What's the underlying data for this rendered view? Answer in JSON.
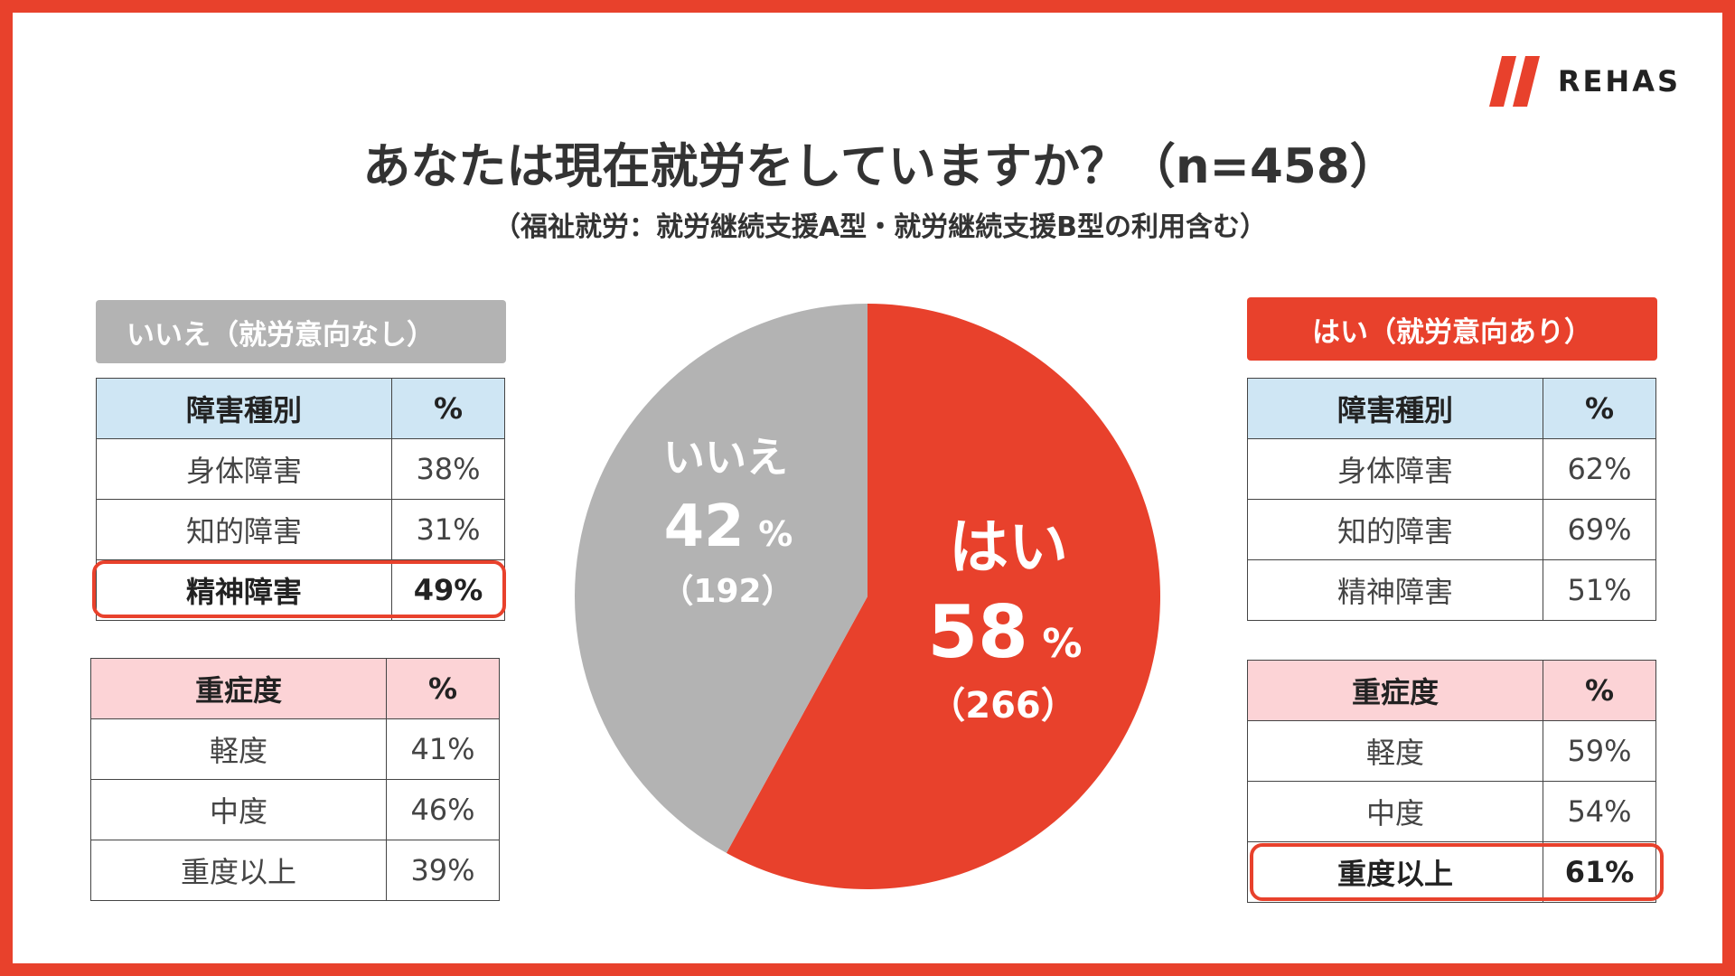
{
  "brand": {
    "name": "REHAS",
    "accent": "#e8412c",
    "gray": "#b3b3b3"
  },
  "title": "あなたは現在就労をしていますか？（n=458）",
  "subtitle": "（福祉就労：就労継続支援A型・就労継続支援B型の利用含む）",
  "left_group": {
    "header": "いいえ（就労意向なし）",
    "disability_table": {
      "headers": [
        "障害種別",
        "%"
      ],
      "rows": [
        {
          "name": "身体障害",
          "pct": "38%"
        },
        {
          "name": "知的障害",
          "pct": "31%"
        },
        {
          "name": "精神障害",
          "pct": "49%"
        }
      ]
    },
    "severity_table": {
      "headers": [
        "重症度",
        "%"
      ],
      "rows": [
        {
          "name": "軽度",
          "pct": "41%"
        },
        {
          "name": "中度",
          "pct": "46%"
        },
        {
          "name": "重度以上",
          "pct": "39%"
        }
      ]
    }
  },
  "right_group": {
    "header": "はい（就労意向あり）",
    "disability_table": {
      "headers": [
        "障害種別",
        "%"
      ],
      "rows": [
        {
          "name": "身体障害",
          "pct": "62%"
        },
        {
          "name": "知的障害",
          "pct": "69%"
        },
        {
          "name": "精神障害",
          "pct": "51%"
        }
      ]
    },
    "severity_table": {
      "headers": [
        "重症度",
        "%"
      ],
      "rows": [
        {
          "name": "軽度",
          "pct": "59%"
        },
        {
          "name": "中度",
          "pct": "54%"
        },
        {
          "name": "重度以上",
          "pct": "61%"
        }
      ]
    }
  },
  "chart_data": {
    "type": "pie",
    "title": "あなたは現在就労をしていますか？（n=458）",
    "slices": [
      {
        "label": "はい",
        "percent": 58,
        "percent_label": "58",
        "unit": "%",
        "count": 266,
        "count_label": "（266）",
        "color": "#e8412c"
      },
      {
        "label": "いいえ",
        "percent": 42,
        "percent_label": "42",
        "unit": "%",
        "count": 192,
        "count_label": "（192）",
        "color": "#b3b3b3"
      }
    ]
  }
}
